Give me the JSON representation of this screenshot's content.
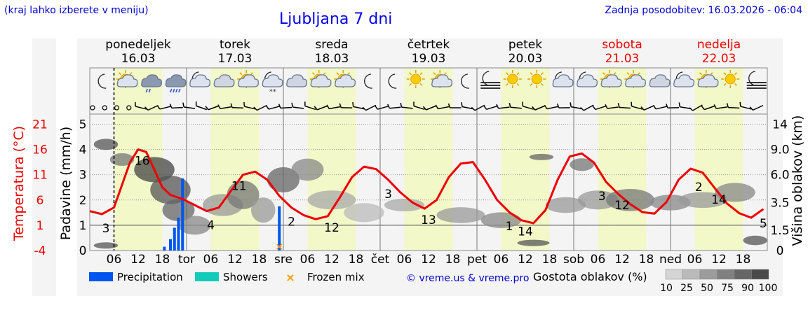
{
  "header": {
    "left_note": "(kraj lahko izberete v meniju)",
    "title": "Ljubljana 7 dni",
    "updated": "Zadnja posodobitev: 16.03.2026 - 06:04"
  },
  "days": [
    {
      "name": "ponedeljek",
      "date": "16.03",
      "weekend": false,
      "abbr": "",
      "icons": [
        "moon",
        "sun-cloud",
        "rain-cloud",
        "heavy-rain-cloud"
      ]
    },
    {
      "name": "torek",
      "date": "17.03",
      "weekend": false,
      "abbr": "tor",
      "icons": [
        "moon-cloud",
        "cloud",
        "sun-cloud",
        "moon-snow"
      ]
    },
    {
      "name": "sreda",
      "date": "18.03",
      "weekend": false,
      "abbr": "sre",
      "icons": [
        "cloud",
        "sun-cloud",
        "sun-cloud",
        "moon"
      ]
    },
    {
      "name": "četrtek",
      "date": "19.03",
      "weekend": false,
      "abbr": "čet",
      "icons": [
        "moon",
        "sun",
        "sun-cloud",
        "moon"
      ]
    },
    {
      "name": "petek",
      "date": "20.03",
      "weekend": false,
      "abbr": "pet",
      "icons": [
        "fog",
        "sun",
        "sun",
        "moon-cloud"
      ]
    },
    {
      "name": "sobota",
      "date": "21.03",
      "weekend": true,
      "abbr": "sob",
      "icons": [
        "moon-cloud",
        "sun-cloud",
        "sun-cloud",
        "cloud"
      ]
    },
    {
      "name": "nedelja",
      "date": "22.03",
      "weekend": true,
      "abbr": "ned",
      "icons": [
        "moon-cloud",
        "sun-cloud",
        "sun",
        "fog"
      ]
    }
  ],
  "legend": {
    "precipitation": "Precipitation",
    "showers": "Showers",
    "frozen": "Frozen mix",
    "credit": "© vreme.us & vreme.pro",
    "cloud_density_title": "Gostota oblakov (%)",
    "cloud_density_steps": [
      "10",
      "25",
      "50",
      "75",
      "90",
      "100"
    ]
  },
  "colors": {
    "temperature": "#ee0000",
    "precipitation": "#0055ee",
    "showers": "#11ccbb",
    "frozen": "#ff9900",
    "daylight": "#f2f8c8",
    "weekend_text": "#ee0000",
    "link": "#0000cc"
  },
  "chart_data": {
    "type": "line",
    "title": "Ljubljana 7 dni",
    "x_unit": "hours from 16.03 00:00",
    "x_range": [
      0,
      168
    ],
    "x_tick_hours": [
      "06",
      "12",
      "18"
    ],
    "axes": {
      "temperature": {
        "label": "Temperatura (°C)",
        "ticks": [
          -4,
          1,
          6,
          11,
          16,
          21
        ],
        "range": [
          -4,
          23
        ]
      },
      "precipitation": {
        "label": "Padavine (mm/h)",
        "ticks": [
          0,
          1,
          2,
          3,
          4,
          5
        ],
        "range": [
          0,
          5.4
        ]
      },
      "cloud_height": {
        "label": "Višina oblakov (km)",
        "ticks": [
          "0",
          "1.5",
          "3.5",
          "6.0",
          "9.0",
          "14"
        ]
      }
    },
    "series": [
      {
        "name": "Temperatura (°C)",
        "x": [
          0,
          3,
          6,
          8,
          10,
          12,
          14,
          16,
          18,
          20,
          23,
          26,
          29,
          32,
          35,
          38,
          41,
          44,
          47,
          50,
          53,
          56,
          59,
          62,
          65,
          68,
          71,
          74,
          77,
          80,
          83,
          86,
          89,
          92,
          95,
          98,
          101,
          104,
          107,
          110,
          113,
          116,
          119,
          122,
          125,
          128,
          131,
          134,
          137,
          140,
          143,
          146,
          149,
          152,
          155,
          158,
          161,
          164,
          167
        ],
        "y": [
          3.8,
          3.2,
          4.5,
          9,
          13.5,
          16,
          15.5,
          12,
          8.5,
          7,
          6.2,
          5,
          3.8,
          4.5,
          7.8,
          11,
          11.6,
          10,
          6.8,
          4.5,
          3,
          2.2,
          2.8,
          6.5,
          10.5,
          12.6,
          12.1,
          10,
          7.5,
          5.5,
          4.3,
          6,
          10.5,
          13.2,
          13.5,
          10,
          6,
          3.6,
          2,
          1.4,
          4,
          10,
          14.6,
          15.2,
          13.4,
          9.6,
          7.2,
          5.2,
          3.6,
          3.3,
          5.6,
          10,
          12.2,
          11.4,
          8.3,
          5.3,
          3.4,
          2.5,
          4.2
        ]
      },
      {
        "name": "Padavine (mm/h)",
        "x": [
          18.5,
          20,
          21,
          22,
          23
        ],
        "y": [
          0.15,
          0.45,
          0.9,
          1.3,
          2.85
        ]
      },
      {
        "name": "Frozen mix",
        "x": [
          47
        ],
        "y": [
          1.75
        ]
      }
    ],
    "temperature_labels": [
      {
        "x": 4,
        "value": "3"
      },
      {
        "x": 13,
        "value": "16"
      },
      {
        "x": 30,
        "value": "4"
      },
      {
        "x": 37,
        "value": "11"
      },
      {
        "x": 50,
        "value": "2"
      },
      {
        "x": 60,
        "value": "12"
      },
      {
        "x": 74,
        "value": "3"
      },
      {
        "x": 84,
        "value": "13"
      },
      {
        "x": 104,
        "value": "1"
      },
      {
        "x": 108,
        "value": "14"
      },
      {
        "x": 127,
        "value": "3"
      },
      {
        "x": 132,
        "value": "12"
      },
      {
        "x": 151,
        "value": "2"
      },
      {
        "x": 156,
        "value": "14"
      },
      {
        "x": 167,
        "value": "5"
      }
    ],
    "current_time_marker_hour": 6
  }
}
